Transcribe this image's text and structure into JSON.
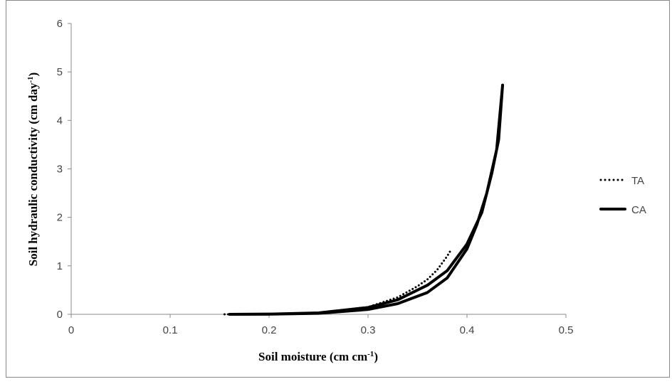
{
  "chart_data": {
    "type": "line",
    "xlabel": [
      "Soil moisture (cm cm",
      "-1",
      ")"
    ],
    "ylabel": [
      "Soil hydraulic conductivity (cm day",
      "-1",
      ")"
    ],
    "xlim": [
      0,
      0.5
    ],
    "xticks": [
      0,
      0.1,
      0.2,
      0.3,
      0.4,
      0.5
    ],
    "ylim": [
      0,
      6
    ],
    "yticks": [
      0,
      1,
      2,
      3,
      4,
      5,
      6
    ],
    "grid": false,
    "legend": "right",
    "series": [
      {
        "name": "TA",
        "color": "#000000",
        "style": "dotted",
        "x": [
          0.155,
          0.2,
          0.25,
          0.3,
          0.33,
          0.35,
          0.36,
          0.37,
          0.38,
          0.383
        ],
        "values": [
          0,
          0.003,
          0.03,
          0.15,
          0.35,
          0.58,
          0.72,
          0.92,
          1.2,
          1.3
        ]
      },
      {
        "name": "CA",
        "color": "#000000",
        "style": "solid",
        "x": [
          0.16,
          0.2,
          0.25,
          0.3,
          0.33,
          0.36,
          0.38,
          0.4,
          0.415,
          0.425,
          0.432,
          0.436,
          0.43,
          0.42,
          0.41,
          0.4,
          0.38,
          0.36,
          0.33,
          0.3,
          0.25,
          0.2,
          0.16
        ],
        "values": [
          0,
          0.005,
          0.03,
          0.14,
          0.3,
          0.6,
          0.9,
          1.45,
          2.1,
          2.9,
          3.6,
          4.73,
          3.4,
          2.5,
          1.85,
          1.35,
          0.75,
          0.45,
          0.22,
          0.1,
          0.02,
          0.002,
          0
        ]
      }
    ]
  }
}
